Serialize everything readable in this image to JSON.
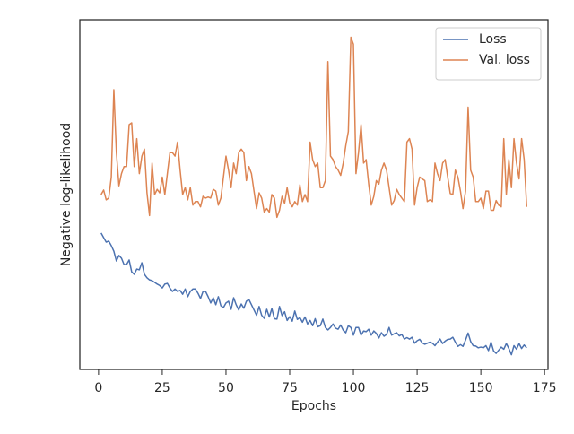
{
  "chart_data": {
    "type": "line",
    "x_label": "Epochs",
    "y_label": "Negative log-likelihood",
    "x": [
      1,
      2,
      3,
      4,
      5,
      6,
      7,
      8,
      9,
      10,
      11,
      12,
      13,
      14,
      15,
      16,
      17,
      18,
      19,
      20,
      21,
      22,
      23,
      24,
      25,
      26,
      27,
      28,
      29,
      30,
      31,
      32,
      33,
      34,
      35,
      36,
      37,
      38,
      39,
      40,
      41,
      42,
      43,
      44,
      45,
      46,
      47,
      48,
      49,
      50,
      51,
      52,
      53,
      54,
      55,
      56,
      57,
      58,
      59,
      60,
      61,
      62,
      63,
      64,
      65,
      66,
      67,
      68,
      69,
      70,
      71,
      72,
      73,
      74,
      75,
      76,
      77,
      78,
      79,
      80,
      81,
      82,
      83,
      84,
      85,
      86,
      87,
      88,
      89,
      90,
      91,
      92,
      93,
      94,
      95,
      96,
      97,
      98,
      99,
      100,
      101,
      102,
      103,
      104,
      105,
      106,
      107,
      108,
      109,
      110,
      111,
      112,
      113,
      114,
      115,
      116,
      117,
      118,
      119,
      120,
      121,
      122,
      123,
      124,
      125,
      126,
      127,
      128,
      129,
      130,
      131,
      132,
      133,
      134,
      135,
      136,
      137,
      138,
      139,
      140,
      141,
      142,
      143,
      144,
      145,
      146,
      147,
      148,
      149,
      150,
      151,
      152,
      153,
      154,
      155,
      156,
      157,
      158,
      159,
      160,
      161,
      162,
      163,
      164,
      165,
      166,
      167,
      168
    ],
    "series": [
      {
        "name": "Loss",
        "color": "#4c72b0",
        "values": [
          39,
          37.7,
          36.4,
          36.7,
          35.4,
          33.8,
          31,
          32.6,
          31.8,
          30,
          30,
          31.3,
          27.9,
          27.2,
          28.7,
          28.5,
          30.5,
          27.2,
          26.2,
          25.6,
          25.4,
          24.9,
          24.4,
          24,
          23.3,
          24.4,
          24.6,
          23.3,
          22.3,
          23,
          22.3,
          22.6,
          21.5,
          23,
          20.8,
          22.3,
          23,
          23,
          21.8,
          20.3,
          22.3,
          22.3,
          20.8,
          19,
          20.5,
          18.5,
          20.8,
          18.2,
          17.7,
          19,
          19.5,
          17.2,
          20.5,
          18.5,
          17,
          18.7,
          17.5,
          19.5,
          20,
          18.5,
          17,
          15.5,
          18,
          15.5,
          14.6,
          17.2,
          15,
          17.4,
          14.5,
          14.4,
          18,
          15.4,
          16.5,
          14,
          15.1,
          13.8,
          16.7,
          14.3,
          14.8,
          13.5,
          15,
          13,
          14,
          12.5,
          14.5,
          12.2,
          12.5,
          14.4,
          12,
          11.3,
          12,
          13,
          11.8,
          11.5,
          12.7,
          11.2,
          10.5,
          12.5,
          12,
          9.8,
          12,
          12,
          9.8,
          11,
          10.8,
          11.5,
          9.8,
          11,
          10.3,
          9,
          10.5,
          9.5,
          10,
          12,
          9.8,
          10.2,
          10.5,
          9.6,
          10,
          8.7,
          9.1,
          8.7,
          9.2,
          7.5,
          8.2,
          8.6,
          7.6,
          7.2,
          7.5,
          7.8,
          7.5,
          6.8,
          7.8,
          8.7,
          7.4,
          8.1,
          8.6,
          8.7,
          9.2,
          7.8,
          6.6,
          7.1,
          6.6,
          8.4,
          10.4,
          8,
          6.8,
          6.7,
          6.2,
          6.4,
          6.2,
          6.8,
          5.4,
          7.8,
          5.3,
          4.6,
          5.5,
          6.4,
          5.8,
          7.4,
          6,
          4.2,
          6.8,
          5.8,
          7.4,
          6,
          7,
          6.2
        ]
      },
      {
        "name": "Val. loss",
        "color": "#dd8452",
        "values": [
          50,
          51.3,
          48.5,
          49,
          55,
          80,
          62,
          52.5,
          56,
          58,
          58,
          70,
          70.5,
          58,
          66,
          56,
          61,
          63,
          50.5,
          44,
          59,
          50,
          51.5,
          50.5,
          55,
          50,
          56,
          62,
          62,
          61,
          65,
          57,
          50,
          52,
          48.5,
          52,
          47,
          48,
          48,
          46.5,
          49.5,
          49,
          49.3,
          49,
          51.5,
          51,
          47,
          49,
          55,
          61,
          57,
          52,
          59,
          56,
          62,
          63,
          62,
          54,
          58,
          56,
          51,
          46,
          50.5,
          49,
          45,
          46,
          45,
          50,
          49,
          43.5,
          45.5,
          49.5,
          47.5,
          52,
          47.7,
          46.5,
          48,
          47,
          52.8,
          48,
          50,
          48,
          65,
          60,
          58,
          59,
          52,
          52,
          54,
          88,
          61,
          60,
          58,
          57,
          55.5,
          59,
          64,
          68,
          95,
          93,
          56,
          62,
          70,
          59,
          60,
          53,
          47,
          49.5,
          54,
          53,
          57,
          59,
          57,
          52,
          47,
          48.3,
          51.5,
          50,
          49,
          48,
          65,
          66,
          63,
          47,
          52,
          55,
          54.5,
          54,
          48,
          48.5,
          48,
          59,
          56,
          54,
          59,
          60,
          55,
          50.3,
          50,
          57,
          55,
          51,
          46,
          51,
          75,
          57,
          55,
          48,
          48,
          49,
          46,
          51,
          51,
          45.5,
          45.5,
          48.3,
          47,
          46.5,
          66,
          50,
          60,
          52,
          66,
          59,
          54.5,
          66,
          60,
          46.5
        ]
      }
    ],
    "xlim": [
      -7.35,
      176.35
    ],
    "xticks": [
      0,
      25,
      50,
      75,
      100,
      125,
      150,
      175
    ],
    "ylim": [
      0,
      100
    ],
    "legend": "upper right"
  }
}
